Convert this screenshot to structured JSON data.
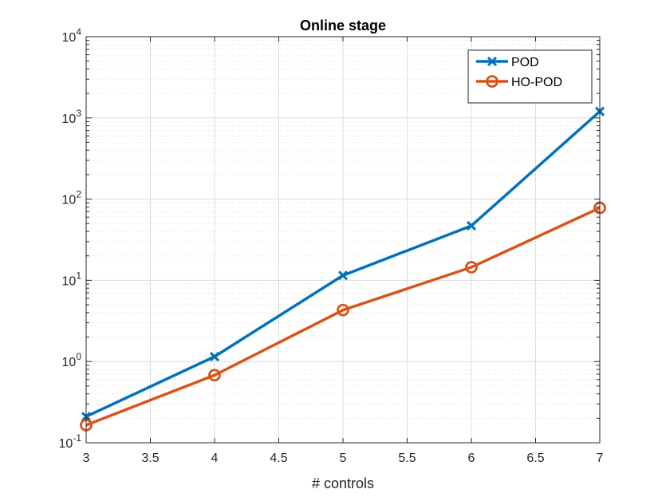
{
  "chart_data": {
    "type": "line",
    "title": "Online stage",
    "xlabel": "# controls",
    "ylabel": "",
    "x": [
      3,
      4,
      5,
      6,
      7
    ],
    "xlim": [
      3,
      7
    ],
    "xticks": [
      3,
      3.5,
      4,
      4.5,
      5,
      5.5,
      6,
      6.5,
      7
    ],
    "xtick_labels": [
      "3",
      "3.5",
      "4",
      "4.5",
      "5",
      "5.5",
      "6",
      "6.5",
      "7"
    ],
    "yscale": "log",
    "ylim": [
      0.1,
      10000
    ],
    "yticks": [
      {
        "value": 0.1,
        "base": "10",
        "exp": "-1"
      },
      {
        "value": 1,
        "base": "10",
        "exp": "0"
      },
      {
        "value": 10,
        "base": "10",
        "exp": "1"
      },
      {
        "value": 100,
        "base": "10",
        "exp": "2"
      },
      {
        "value": 1000,
        "base": "10",
        "exp": "3"
      },
      {
        "value": 10000,
        "base": "10",
        "exp": "4"
      }
    ],
    "grid": true,
    "legend_position": "top-right",
    "series": [
      {
        "name": "POD",
        "color": "#0072BD",
        "marker": "x",
        "values": [
          0.21,
          1.15,
          11.5,
          47,
          1200
        ]
      },
      {
        "name": "HO-POD",
        "color": "#D95319",
        "marker": "o",
        "values": [
          0.165,
          0.68,
          4.3,
          14.5,
          78
        ]
      }
    ]
  }
}
